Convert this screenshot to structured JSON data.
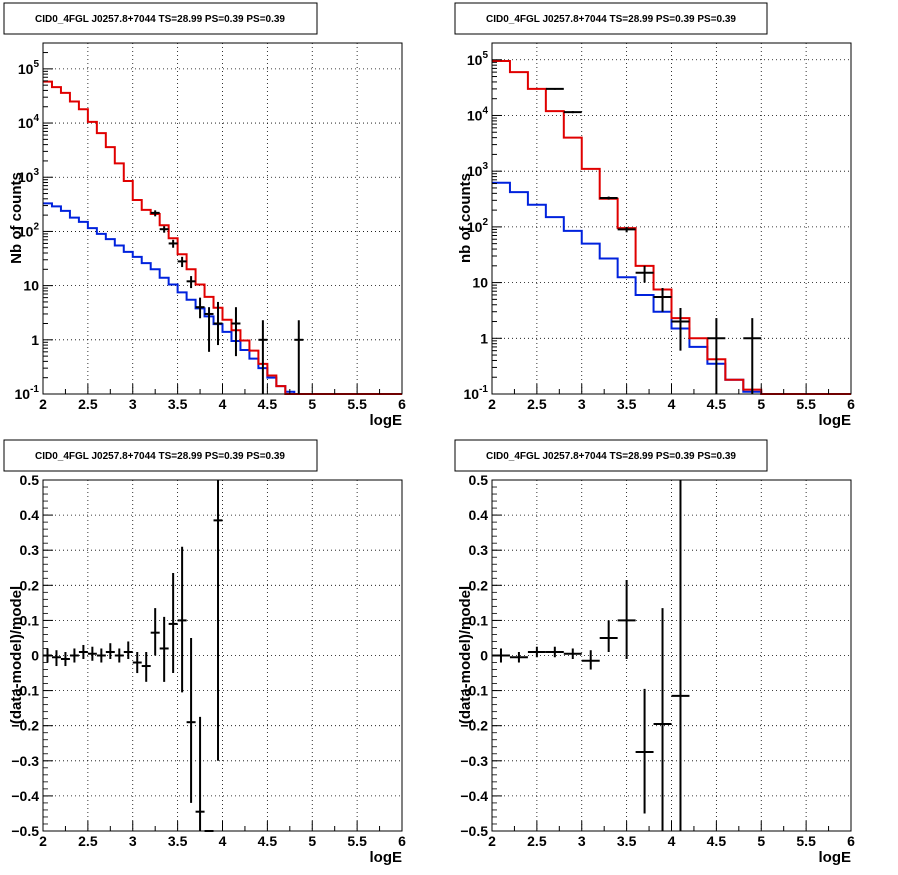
{
  "colors": {
    "total_model": "#e00000",
    "component_model": "#0022dd",
    "data": "#000000",
    "grid": "#000000"
  },
  "chart_data": [
    {
      "type": "line",
      "title": "CID0_4FGL J0257.8+7044 TS=28.99 PS=0.39 PS=0.39",
      "xlabel": "logE",
      "ylabel": "Nb of counts",
      "xlim": [
        2,
        6
      ],
      "ylim": [
        0.1,
        300000
      ],
      "yscale": "log",
      "grid": true,
      "x_ticks": [
        "2",
        "2.5",
        "3",
        "3.5",
        "4",
        "4.5",
        "5",
        "5.5",
        "6"
      ],
      "y_ticks": [
        {
          "value": 0.1,
          "base": "10",
          "exp": "-1"
        },
        {
          "value": 1,
          "label": "1"
        },
        {
          "value": 10,
          "label": "10"
        },
        {
          "value": 100,
          "base": "10",
          "exp": "2"
        },
        {
          "value": 1000,
          "base": "10",
          "exp": "3"
        },
        {
          "value": 10000,
          "base": "10",
          "exp": "4"
        },
        {
          "value": 100000,
          "base": "10",
          "exp": "5"
        }
      ],
      "series": [
        {
          "kind": "step",
          "color": "component_model",
          "edges": [
            2.0,
            2.1,
            2.2,
            2.3,
            2.4,
            2.5,
            2.6,
            2.7,
            2.8,
            2.9,
            3.0,
            3.1,
            3.2,
            3.3,
            3.4,
            3.5,
            3.6,
            3.7,
            3.8,
            3.9,
            4.0,
            4.1,
            4.2,
            4.3,
            4.4,
            4.5,
            4.6,
            4.7,
            4.8,
            4.9,
            5.0,
            5.1,
            5.2,
            5.3,
            5.4,
            5.5,
            5.6,
            5.7,
            5.8,
            5.9,
            6.0
          ],
          "values": [
            330,
            290,
            240,
            180,
            150,
            115,
            90,
            72,
            55,
            42,
            34,
            26,
            20,
            14,
            10.5,
            7.5,
            5.5,
            3.8,
            2.7,
            1.95,
            1.4,
            0.95,
            0.65,
            0.45,
            0.3,
            0.2,
            0.14,
            0.11,
            0.1,
            0.1,
            0.1,
            0.1,
            0.1,
            0.1,
            0.1,
            0.1,
            0.1,
            0.1,
            0.1,
            0.1
          ]
        },
        {
          "kind": "step",
          "color": "total_model",
          "edges": [
            2.0,
            2.1,
            2.2,
            2.3,
            2.4,
            2.5,
            2.6,
            2.7,
            2.8,
            2.9,
            3.0,
            3.1,
            3.2,
            3.3,
            3.4,
            3.5,
            3.6,
            3.7,
            3.8,
            3.9,
            4.0,
            4.1,
            4.2,
            4.3,
            4.4,
            4.5,
            4.6,
            4.7,
            4.8,
            4.9,
            5.0,
            5.1,
            5.2,
            5.3,
            5.4,
            5.5,
            5.6,
            5.7,
            5.8,
            5.9,
            6.0
          ],
          "values": [
            58000,
            46000,
            36000,
            25000,
            18000,
            10500,
            6500,
            3600,
            1800,
            850,
            380,
            250,
            210,
            130,
            75,
            38,
            20,
            10.5,
            6.2,
            3.9,
            2.35,
            1.5,
            0.97,
            0.63,
            0.36,
            0.22,
            0.14,
            0.1,
            0.1,
            0.1,
            0.1,
            0.1,
            0.1,
            0.1,
            0.1,
            0.1,
            0.1,
            0.1,
            0.1,
            0.1
          ]
        },
        {
          "kind": "errorbar",
          "color": "data",
          "x": [
            3.25,
            3.35,
            3.45,
            3.55,
            3.65,
            3.75,
            3.85,
            3.95,
            4.15,
            4.45,
            4.85
          ],
          "y": [
            220,
            110,
            60,
            28,
            12,
            4,
            3,
            2,
            2,
            1,
            1
          ],
          "ylo": [
            190,
            95,
            50,
            22,
            9,
            2.5,
            0.6,
            0.8,
            0.5,
            0.1,
            0.1
          ],
          "yhi": [
            245,
            125,
            70,
            34,
            15,
            6,
            4,
            5,
            4,
            2.3,
            2.3
          ],
          "xerr": 0.05
        }
      ]
    },
    {
      "type": "line",
      "title": "CID0_4FGL J0257.8+7044 TS=28.99 PS=0.39 PS=0.39",
      "xlabel": "logE",
      "ylabel": "nb of counts",
      "xlim": [
        2,
        6
      ],
      "ylim": [
        0.1,
        200000
      ],
      "yscale": "log",
      "grid": true,
      "x_ticks": [
        "2",
        "2.5",
        "3",
        "3.5",
        "4",
        "4.5",
        "5",
        "5.5",
        "6"
      ],
      "y_ticks": [
        {
          "value": 0.1,
          "base": "10",
          "exp": "-1"
        },
        {
          "value": 1,
          "label": "1"
        },
        {
          "value": 10,
          "label": "10"
        },
        {
          "value": 100,
          "base": "10",
          "exp": "2"
        },
        {
          "value": 1000,
          "base": "10",
          "exp": "3"
        },
        {
          "value": 10000,
          "base": "10",
          "exp": "4"
        },
        {
          "value": 100000,
          "base": "10",
          "exp": "5"
        }
      ],
      "series": [
        {
          "kind": "step",
          "color": "component_model",
          "edges": [
            2.0,
            2.2,
            2.4,
            2.6,
            2.8,
            3.0,
            3.2,
            3.4,
            3.6,
            3.8,
            4.0,
            4.2,
            4.4,
            4.6,
            4.8,
            5.0,
            5.2,
            5.4,
            5.6,
            5.8,
            6.0
          ],
          "values": [
            620,
            420,
            250,
            150,
            85,
            50,
            27,
            12.5,
            6,
            3,
            1.5,
            0.7,
            0.35,
            0.18,
            0.11,
            0.1,
            0.1,
            0.1,
            0.1,
            0.1
          ]
        },
        {
          "kind": "step",
          "color": "total_model",
          "edges": [
            2.0,
            2.2,
            2.4,
            2.6,
            2.8,
            3.0,
            3.2,
            3.4,
            3.6,
            3.8,
            4.0,
            4.2,
            4.4,
            4.6,
            4.8,
            5.0,
            5.2,
            5.4,
            5.6,
            5.8,
            6.0
          ],
          "values": [
            95000,
            60000,
            30000,
            12000,
            4000,
            1100,
            320,
            95,
            20,
            7.5,
            2.3,
            1.0,
            0.42,
            0.18,
            0.12,
            0.1,
            0.1,
            0.1,
            0.1,
            0.1
          ]
        },
        {
          "kind": "errorbar",
          "color": "data",
          "x": [
            2.7,
            2.9,
            3.3,
            3.5,
            3.7,
            3.9,
            4.1,
            4.5,
            4.9
          ],
          "y": [
            30000,
            11500,
            330,
            90,
            15,
            5.5,
            2,
            1,
            1
          ],
          "ylo": [
            29000,
            11000,
            310,
            80,
            10,
            3,
            0.6,
            0.1,
            0.1
          ],
          "yhi": [
            31000,
            12000,
            350,
            100,
            20,
            8,
            3.5,
            2.3,
            2.3
          ],
          "xerr": 0.1
        }
      ]
    },
    {
      "type": "scatter",
      "title": "CID0_4FGL J0257.8+7044 TS=28.99 PS=0.39 PS=0.39",
      "xlabel": "logE",
      "ylabel": "(data-model)/model",
      "xlim": [
        2,
        6
      ],
      "ylim": [
        -0.5,
        0.5
      ],
      "yscale": "linear",
      "grid": true,
      "x_ticks": [
        "2",
        "2.5",
        "3",
        "3.5",
        "4",
        "4.5",
        "5",
        "5.5",
        "6"
      ],
      "y_ticks": [
        {
          "value": -0.5,
          "label": "−0.5"
        },
        {
          "value": -0.4,
          "label": "−0.4"
        },
        {
          "value": -0.3,
          "label": "−0.3"
        },
        {
          "value": -0.2,
          "label": "−0.2"
        },
        {
          "value": -0.1,
          "label": "−0.1"
        },
        {
          "value": 0,
          "label": "0"
        },
        {
          "value": 0.1,
          "label": "0.1"
        },
        {
          "value": 0.2,
          "label": "0.2"
        },
        {
          "value": 0.3,
          "label": "0.3"
        },
        {
          "value": 0.4,
          "label": "0.4"
        },
        {
          "value": 0.5,
          "label": "0.5"
        }
      ],
      "series": [
        {
          "kind": "errorbar",
          "color": "data",
          "x": [
            2.05,
            2.15,
            2.25,
            2.35,
            2.45,
            2.55,
            2.65,
            2.75,
            2.85,
            2.95,
            3.05,
            3.15,
            3.25,
            3.35,
            3.45,
            3.55,
            3.65,
            3.75,
            3.85,
            3.95
          ],
          "y": [
            0,
            -0.005,
            -0.01,
            0,
            0.01,
            0.005,
            0,
            0.01,
            0,
            0.01,
            -0.02,
            -0.03,
            0.065,
            0.02,
            0.09,
            0.1,
            -0.19,
            -0.445,
            -0.5,
            0.385
          ],
          "ylo": [
            -0.02,
            -0.03,
            -0.03,
            -0.02,
            -0.01,
            -0.015,
            -0.02,
            -0.01,
            -0.02,
            -0.01,
            -0.05,
            -0.075,
            0,
            -0.075,
            -0.05,
            -0.105,
            -0.42,
            -0.5,
            -0.5,
            -0.3
          ],
          "yhi": [
            0.02,
            0.015,
            0.01,
            0.02,
            0.03,
            0.025,
            0.02,
            0.035,
            0.02,
            0.04,
            0.01,
            0.01,
            0.135,
            0.11,
            0.235,
            0.31,
            0.05,
            -0.175,
            -0.5,
            0.5
          ],
          "xerr": 0.05
        }
      ]
    },
    {
      "type": "scatter",
      "title": "CID0_4FGL J0257.8+7044 TS=28.99 PS=0.39 PS=0.39",
      "xlabel": "logE",
      "ylabel": "(data-model)/model",
      "xlim": [
        2,
        6
      ],
      "ylim": [
        -0.5,
        0.5
      ],
      "yscale": "linear",
      "grid": true,
      "x_ticks": [
        "2",
        "2.5",
        "3",
        "3.5",
        "4",
        "4.5",
        "5",
        "5.5",
        "6"
      ],
      "y_ticks": [
        {
          "value": -0.5,
          "label": "−0.5"
        },
        {
          "value": -0.4,
          "label": "−0.4"
        },
        {
          "value": -0.3,
          "label": "−0.3"
        },
        {
          "value": -0.2,
          "label": "−0.2"
        },
        {
          "value": -0.1,
          "label": "−0.1"
        },
        {
          "value": 0,
          "label": "0"
        },
        {
          "value": 0.1,
          "label": "0.1"
        },
        {
          "value": 0.2,
          "label": "0.2"
        },
        {
          "value": 0.3,
          "label": "0.3"
        },
        {
          "value": 0.4,
          "label": "0.4"
        },
        {
          "value": 0.5,
          "label": "0.5"
        }
      ],
      "series": [
        {
          "kind": "errorbar",
          "color": "data",
          "x": [
            2.1,
            2.3,
            2.5,
            2.7,
            2.9,
            3.1,
            3.3,
            3.5,
            3.7,
            3.9,
            4.1
          ],
          "y": [
            0,
            -0.005,
            0.01,
            0.01,
            0.005,
            -0.015,
            0.05,
            0.1,
            -0.275,
            -0.195,
            -0.115
          ],
          "ylo": [
            -0.02,
            -0.02,
            -0.005,
            -0.005,
            -0.01,
            -0.04,
            0.01,
            -0.01,
            -0.45,
            -0.5,
            -0.5
          ],
          "yhi": [
            0.02,
            0.01,
            0.025,
            0.025,
            0.02,
            0.015,
            0.1,
            0.215,
            -0.095,
            0.135,
            0.5
          ],
          "xerr": 0.1
        }
      ]
    }
  ]
}
